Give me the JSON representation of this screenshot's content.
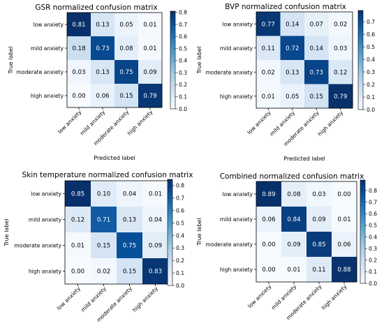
{
  "chart_data": [
    {
      "type": "heatmap",
      "title": "GSR normalized confusion matrix",
      "xlabel": "Predicted label",
      "ylabel": "True label",
      "row_labels": [
        "low anxiety",
        "mild anxiety",
        "moderate anxiety",
        "high anxiety"
      ],
      "col_labels": [
        "low anxiety",
        "mild anxiety",
        "moderate anxiety",
        "high anxiety"
      ],
      "values": [
        [
          0.81,
          0.13,
          0.05,
          0.01
        ],
        [
          0.18,
          0.73,
          0.08,
          0.01
        ],
        [
          0.03,
          0.13,
          0.75,
          0.09
        ],
        [
          0.0,
          0.06,
          0.15,
          0.79
        ]
      ],
      "colorbar_ticks": [
        0.0,
        0.1,
        0.2,
        0.3,
        0.4,
        0.5,
        0.6,
        0.7,
        0.8
      ],
      "colorbar_range": [
        0.0,
        0.81
      ],
      "colormap": "Blues"
    },
    {
      "type": "heatmap",
      "title": "BVP normalized confusion matrix",
      "xlabel": "Predicted label",
      "ylabel": "True label",
      "row_labels": [
        "low anxiety",
        "mild anxiety",
        "moderate anxiety",
        "high anxiety"
      ],
      "col_labels": [
        "low anxiety",
        "mild anxiety",
        "moderate anxiety",
        "high anxiety"
      ],
      "values": [
        [
          0.77,
          0.14,
          0.07,
          0.02
        ],
        [
          0.11,
          0.72,
          0.14,
          0.03
        ],
        [
          0.02,
          0.13,
          0.73,
          0.12
        ],
        [
          0.01,
          0.05,
          0.15,
          0.79
        ]
      ],
      "colorbar_ticks": [
        0.0,
        0.1,
        0.2,
        0.3,
        0.4,
        0.5,
        0.6,
        0.7
      ],
      "colorbar_range": [
        0.0,
        0.79
      ],
      "colormap": "Blues"
    },
    {
      "type": "heatmap",
      "title": "Skin temperature normalized confusion matrix",
      "xlabel": "Predicted label",
      "ylabel": "True label",
      "row_labels": [
        "low anxiety",
        "mild anxiety",
        "moderate anxiety",
        "high anxiety"
      ],
      "col_labels": [
        "low anxiety",
        "mild anxiety",
        "moderate anxiety",
        "high anxiety"
      ],
      "values": [
        [
          0.85,
          0.1,
          0.04,
          0.01
        ],
        [
          0.12,
          0.71,
          0.13,
          0.04
        ],
        [
          0.01,
          0.15,
          0.75,
          0.09
        ],
        [
          0.0,
          0.02,
          0.15,
          0.83
        ]
      ],
      "colorbar_ticks": [
        0.0,
        0.1,
        0.2,
        0.3,
        0.4,
        0.5,
        0.6,
        0.7,
        0.8
      ],
      "colorbar_range": [
        0.0,
        0.85
      ],
      "colormap": "Blues"
    },
    {
      "type": "heatmap",
      "title": "Combined normalized confusion matrix",
      "xlabel": "Predicted label",
      "ylabel": "True label",
      "row_labels": [
        "low anxiety",
        "mild anxiety",
        "moderate anxiety",
        "high anxiety"
      ],
      "col_labels": [
        "low anxiety",
        "mild anxiety",
        "moderate anxiety",
        "high anxiety"
      ],
      "values": [
        [
          0.89,
          0.08,
          0.03,
          0.0
        ],
        [
          0.06,
          0.84,
          0.09,
          0.01
        ],
        [
          0.0,
          0.09,
          0.85,
          0.06
        ],
        [
          0.0,
          0.01,
          0.11,
          0.88
        ]
      ],
      "colorbar_ticks": [
        0.0,
        0.1,
        0.2,
        0.3,
        0.4,
        0.5,
        0.6,
        0.7,
        0.8
      ],
      "colorbar_range": [
        0.0,
        0.89
      ],
      "colormap": "Blues"
    }
  ]
}
